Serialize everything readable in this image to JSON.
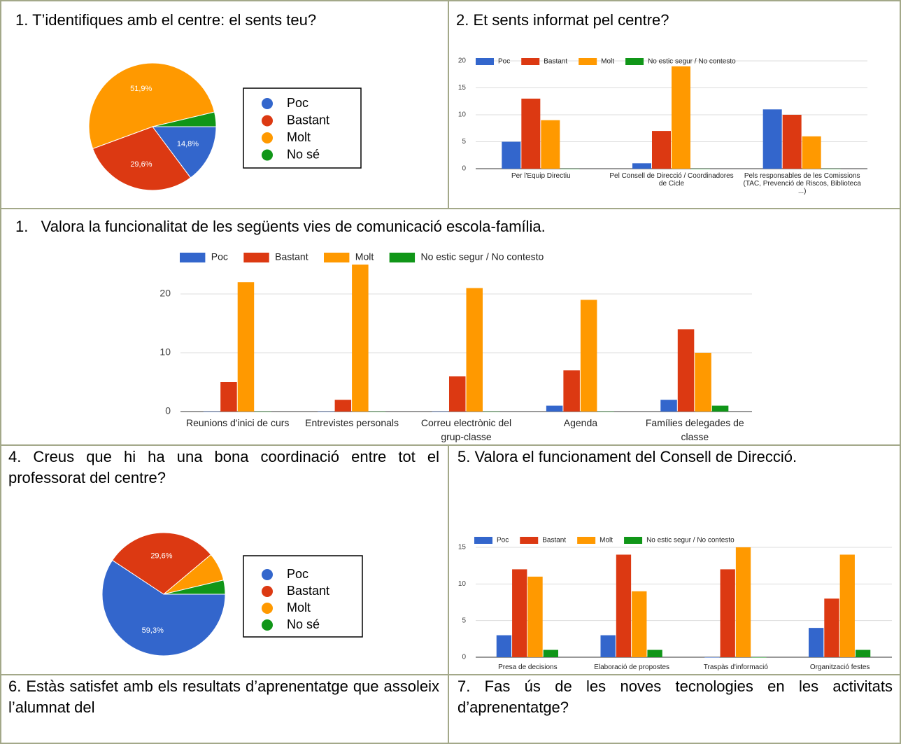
{
  "chart_data": [
    {
      "type": "pie",
      "title": "1. T’identifiques amb el centre: el sents teu?",
      "categories": [
        "Poc",
        "Bastant",
        "Molt",
        "No sé"
      ],
      "values": [
        14.8,
        29.6,
        51.9,
        3.7
      ],
      "value_labels": [
        "14,8%",
        "29,6%",
        "51,9%",
        null
      ],
      "colors": [
        "#3366cc",
        "#dc3912",
        "#ff9900",
        "#109618"
      ]
    },
    {
      "type": "bar",
      "title": "2. Et sents informat pel centre?",
      "categories": [
        "Per l'Equip Directiu",
        "Pel Consell de Direcció / Coordinadores de Cicle",
        "Pels responsables de les Comissions (TAC, Prevenció de Riscos, Biblioteca ...)"
      ],
      "series": [
        {
          "name": "Poc",
          "color": "#3366cc",
          "values": [
            5,
            1,
            11
          ]
        },
        {
          "name": "Bastant",
          "color": "#dc3912",
          "values": [
            13,
            7,
            10
          ]
        },
        {
          "name": "Molt",
          "color": "#ff9900",
          "values": [
            9,
            19,
            6
          ]
        },
        {
          "name": "No estic segur / No contesto",
          "color": "#109618",
          "values": [
            0,
            0,
            0
          ]
        }
      ],
      "ylim": [
        0,
        20
      ],
      "yticks": [
        0,
        5,
        10,
        15,
        20
      ],
      "grid": true,
      "legend": "top"
    },
    {
      "type": "bar",
      "title": "1.   Valora la funcionalitat de les següents vies de comunicació escola-família.",
      "categories": [
        "Reunions d'inici de curs",
        "Entrevistes personals",
        "Correu electrònic del grup-classe",
        "Agenda",
        "Famílies delegades de classe"
      ],
      "series": [
        {
          "name": "Poc",
          "color": "#3366cc",
          "values": [
            0,
            0,
            0,
            1,
            2
          ]
        },
        {
          "name": "Bastant",
          "color": "#dc3912",
          "values": [
            5,
            2,
            6,
            7,
            14
          ]
        },
        {
          "name": "Molt",
          "color": "#ff9900",
          "values": [
            22,
            25,
            21,
            19,
            10
          ]
        },
        {
          "name": "No estic segur / No contesto",
          "color": "#109618",
          "values": [
            0,
            0,
            0,
            0,
            1
          ]
        }
      ],
      "ylim": [
        0,
        25
      ],
      "yticks": [
        0,
        10,
        20
      ],
      "grid": true,
      "legend": "top"
    },
    {
      "type": "pie",
      "title": "4. Creus que hi ha una bona coordinació entre tot el professorat del centre?",
      "categories": [
        "Poc",
        "Bastant",
        "Molt",
        "No sé"
      ],
      "values": [
        59.3,
        29.6,
        7.4,
        3.7
      ],
      "value_labels": [
        "59,3%",
        "29,6%",
        null,
        null
      ],
      "colors": [
        "#3366cc",
        "#dc3912",
        "#ff9900",
        "#109618"
      ]
    },
    {
      "type": "bar",
      "title": "5. Valora el funcionament del Consell de Direcció.",
      "categories": [
        "Presa de decisions",
        "Elaboració de propostes",
        "Traspàs d'informació",
        "Organització festes"
      ],
      "series": [
        {
          "name": "Poc",
          "color": "#3366cc",
          "values": [
            3,
            3,
            0,
            4
          ]
        },
        {
          "name": "Bastant",
          "color": "#dc3912",
          "values": [
            12,
            14,
            12,
            8
          ]
        },
        {
          "name": "Molt",
          "color": "#ff9900",
          "values": [
            11,
            9,
            15,
            14
          ]
        },
        {
          "name": "No estic segur / No contesto",
          "color": "#109618",
          "values": [
            1,
            1,
            0,
            1
          ]
        }
      ],
      "ylim": [
        0,
        15
      ],
      "yticks": [
        0,
        5,
        10,
        15
      ],
      "grid": true,
      "legend": "top"
    }
  ],
  "questions": [
    "6. Estàs satisfet amb els resultats d’aprenentatge que assoleix l’alumnat del",
    "7. Fas ús de les noves tecnologies en les activitats d’aprenentatge?"
  ]
}
